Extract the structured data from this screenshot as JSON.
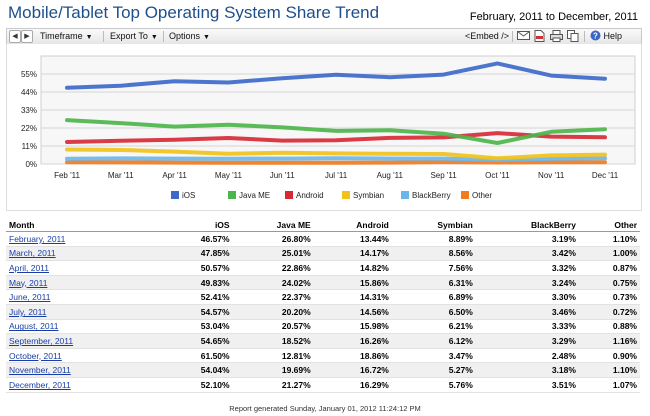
{
  "title": "Mobile/Tablet Top Operating System Share Trend",
  "date_range": "February, 2011 to December, 2011",
  "toolbar": {
    "timeframe": "Timeframe",
    "export": "Export To",
    "options": "Options",
    "embed": "<Embed />",
    "help": "Help"
  },
  "chart_data": {
    "type": "line",
    "categories": [
      "Feb '11",
      "Mar '11",
      "Apr '11",
      "May '11",
      "Jun '11",
      "Jul '11",
      "Aug '11",
      "Sep '11",
      "Oct '11",
      "Nov '11",
      "Dec '11"
    ],
    "ylim": [
      0,
      66
    ],
    "yticks": [
      0,
      11,
      22,
      33,
      44,
      55
    ],
    "ytick_labels": [
      "0%",
      "11%",
      "22%",
      "33%",
      "44%",
      "55%"
    ],
    "legend_position": "bottom",
    "grid": true,
    "series": [
      {
        "name": "iOS",
        "color": "#3d6ac9",
        "values": [
          46.57,
          47.85,
          50.57,
          49.83,
          52.41,
          54.57,
          53.04,
          54.65,
          61.5,
          54.04,
          52.1
        ]
      },
      {
        "name": "Java ME",
        "color": "#4db54b",
        "values": [
          26.8,
          25.01,
          22.86,
          24.02,
          22.37,
          20.2,
          20.57,
          18.52,
          12.81,
          19.69,
          21.27
        ]
      },
      {
        "name": "Android",
        "color": "#d62b36",
        "values": [
          13.44,
          14.17,
          14.82,
          15.86,
          14.31,
          14.56,
          15.98,
          16.26,
          18.86,
          16.72,
          16.29
        ]
      },
      {
        "name": "Symbian",
        "color": "#f1c21b",
        "values": [
          8.89,
          8.56,
          7.56,
          6.31,
          6.89,
          6.5,
          6.21,
          6.12,
          3.47,
          5.27,
          5.76
        ]
      },
      {
        "name": "BlackBerry",
        "color": "#6bb6e8",
        "values": [
          3.19,
          3.42,
          3.32,
          3.24,
          3.3,
          3.46,
          3.33,
          3.29,
          2.48,
          3.18,
          3.51
        ]
      },
      {
        "name": "Other",
        "color": "#f07b21",
        "values": [
          1.1,
          1.0,
          0.87,
          0.75,
          0.73,
          0.72,
          0.88,
          1.16,
          0.9,
          1.1,
          1.07
        ]
      }
    ]
  },
  "table": {
    "headers": [
      "Month",
      "iOS",
      "Java ME",
      "Android",
      "Symbian",
      "BlackBerry",
      "Other"
    ],
    "rows": [
      [
        "February, 2011",
        "46.57%",
        "26.80%",
        "13.44%",
        "8.89%",
        "3.19%",
        "1.10%"
      ],
      [
        "March, 2011",
        "47.85%",
        "25.01%",
        "14.17%",
        "8.56%",
        "3.42%",
        "1.00%"
      ],
      [
        "April, 2011",
        "50.57%",
        "22.86%",
        "14.82%",
        "7.56%",
        "3.32%",
        "0.87%"
      ],
      [
        "May, 2011",
        "49.83%",
        "24.02%",
        "15.86%",
        "6.31%",
        "3.24%",
        "0.75%"
      ],
      [
        "June, 2011",
        "52.41%",
        "22.37%",
        "14.31%",
        "6.89%",
        "3.30%",
        "0.73%"
      ],
      [
        "July, 2011",
        "54.57%",
        "20.20%",
        "14.56%",
        "6.50%",
        "3.46%",
        "0.72%"
      ],
      [
        "August, 2011",
        "53.04%",
        "20.57%",
        "15.98%",
        "6.21%",
        "3.33%",
        "0.88%"
      ],
      [
        "September, 2011",
        "54.65%",
        "18.52%",
        "16.26%",
        "6.12%",
        "3.29%",
        "1.16%"
      ],
      [
        "October, 2011",
        "61.50%",
        "12.81%",
        "18.86%",
        "3.47%",
        "2.48%",
        "0.90%"
      ],
      [
        "November, 2011",
        "54.04%",
        "19.69%",
        "16.72%",
        "5.27%",
        "3.18%",
        "1.10%"
      ],
      [
        "December, 2011",
        "52.10%",
        "21.27%",
        "16.29%",
        "5.76%",
        "3.51%",
        "1.07%"
      ]
    ]
  },
  "footer": "Report generated Sunday, January 01, 2012 11:24:12 PM"
}
